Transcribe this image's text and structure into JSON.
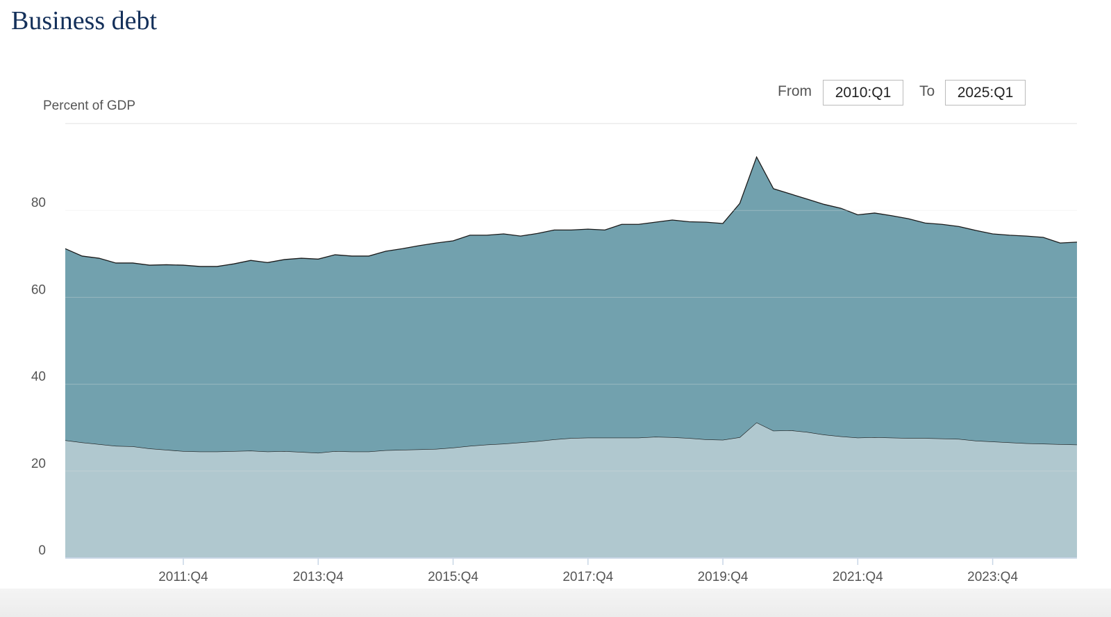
{
  "chart_data": {
    "type": "stacked_area",
    "title": "Business debt",
    "y_label": "Percent of GDP",
    "controls": {
      "from_label": "From",
      "from": "2010:Q1",
      "to_label": "To",
      "to": "2025:Q1"
    },
    "categories": [
      null,
      null,
      null,
      null,
      null,
      null,
      null,
      "2011:Q4",
      null,
      null,
      null,
      null,
      null,
      null,
      null,
      "2013:Q4",
      null,
      null,
      null,
      null,
      null,
      null,
      null,
      "2015:Q4",
      null,
      null,
      null,
      null,
      null,
      null,
      null,
      "2017:Q4",
      null,
      null,
      null,
      null,
      null,
      null,
      null,
      "2019:Q4",
      null,
      null,
      null,
      null,
      null,
      null,
      null,
      "2021:Q4",
      null,
      null,
      null,
      null,
      null,
      null,
      null,
      "2023:Q4",
      null,
      null,
      null,
      null,
      null
    ],
    "series": [
      {
        "color": "#b0c8cf",
        "values": [
          27.1,
          26.6,
          26.2,
          25.8,
          25.7,
          25.2,
          24.9,
          24.6,
          24.5,
          24.5,
          24.6,
          24.7,
          24.5,
          24.6,
          24.4,
          24.2,
          24.6,
          24.5,
          24.5,
          24.8,
          24.9,
          25.0,
          25.1,
          25.4,
          25.8,
          26.1,
          26.3,
          26.6,
          26.9,
          27.3,
          27.6,
          27.7,
          27.7,
          27.7,
          27.7,
          27.9,
          27.8,
          27.6,
          27.3,
          27.2,
          27.8,
          31.2,
          29.3,
          29.4,
          29.0,
          28.4,
          28.0,
          27.7,
          27.8,
          27.7,
          27.6,
          27.6,
          27.5,
          27.4,
          27.0,
          26.8,
          26.6,
          26.4,
          26.3,
          26.2,
          26.1
        ]
      },
      {
        "color": "#72a1ae",
        "values": [
          44.1,
          42.9,
          42.8,
          42.1,
          42.2,
          42.2,
          42.6,
          42.8,
          42.6,
          42.6,
          43.1,
          43.8,
          43.5,
          44.1,
          44.6,
          44.6,
          45.2,
          45.0,
          45.0,
          45.8,
          46.3,
          46.9,
          47.4,
          47.6,
          48.5,
          48.2,
          48.3,
          47.5,
          47.8,
          48.2,
          47.9,
          48.0,
          47.8,
          49.1,
          49.1,
          49.4,
          50.0,
          49.8,
          50.0,
          49.8,
          53.8,
          61.1,
          55.7,
          54.4,
          53.6,
          53.0,
          52.5,
          51.3,
          51.6,
          51.1,
          50.5,
          49.5,
          49.3,
          48.9,
          48.4,
          47.8,
          47.7,
          47.7,
          47.5,
          46.3,
          46.6
        ]
      }
    ],
    "ylim": [
      0,
      100
    ],
    "yticks": [
      0,
      20,
      40,
      60,
      80
    ],
    "grid": true
  }
}
